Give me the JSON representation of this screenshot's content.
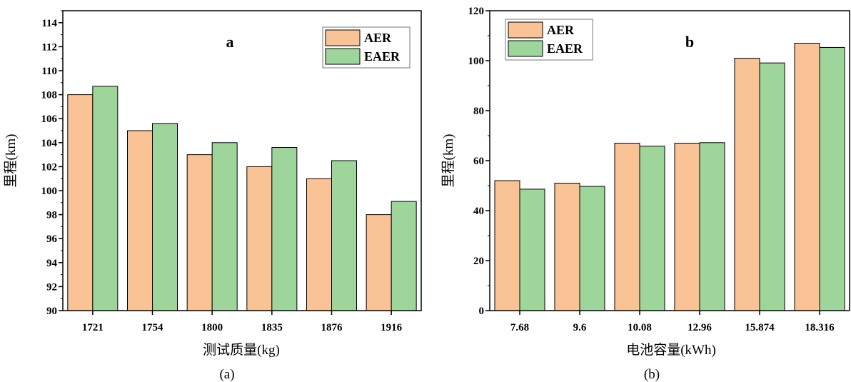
{
  "colors": {
    "aer": "#F9C395",
    "eaer": "#9ED59B",
    "stroke": "#000000"
  },
  "chart_data": [
    {
      "type": "bar",
      "panel_label": "a",
      "caption": "(a)",
      "xlabel": "测试质量(kg)",
      "ylabel": "里程(km)",
      "categories": [
        "1721",
        "1754",
        "1800",
        "1835",
        "1876",
        "1916"
      ],
      "series": [
        {
          "name": "AER",
          "values": [
            108.0,
            105.0,
            103.0,
            102.0,
            101.0,
            98.0
          ]
        },
        {
          "name": "EAER",
          "values": [
            108.7,
            105.6,
            104.0,
            103.6,
            102.5,
            99.1
          ]
        }
      ],
      "ylim": [
        90,
        115
      ],
      "yticks": [
        "90",
        "92",
        "94",
        "96",
        "98",
        "100",
        "102",
        "104",
        "106",
        "108",
        "110",
        "112",
        "114"
      ],
      "legend_position": "top-right",
      "grid": false
    },
    {
      "type": "bar",
      "panel_label": "b",
      "caption": "(b)",
      "xlabel": "电池容量(kWh)",
      "ylabel": "里程(km)",
      "categories": [
        "7.68",
        "9.6",
        "10.08",
        "12.96",
        "15.874",
        "18.316"
      ],
      "series": [
        {
          "name": "AER",
          "values": [
            52.0,
            51.0,
            67.0,
            67.0,
            101.0,
            107.0
          ]
        },
        {
          "name": "EAER",
          "values": [
            48.6,
            49.7,
            65.8,
            67.2,
            99.1,
            105.3
          ]
        }
      ],
      "ylim": [
        0,
        120
      ],
      "yticks": [
        "0",
        "20",
        "40",
        "60",
        "80",
        "100",
        "120"
      ],
      "legend_position": "top-left",
      "grid": false
    }
  ]
}
